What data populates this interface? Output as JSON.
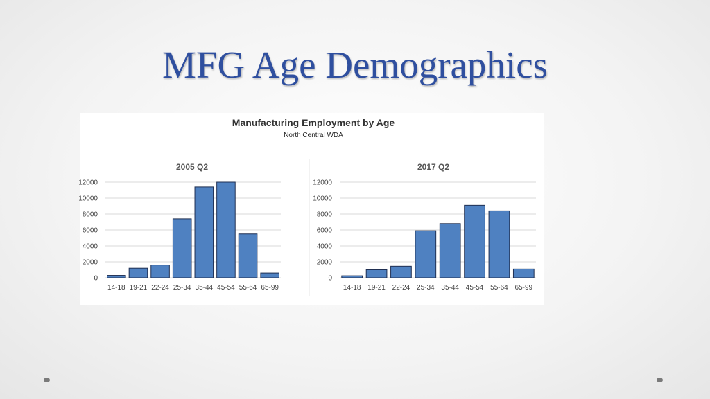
{
  "slide": {
    "title": "MFG Age Demographics"
  },
  "chart_header": {
    "title": "Manufacturing Employment by Age",
    "subtitle": "North Central WDA"
  },
  "colors": {
    "bar": "#4f81c1",
    "title": "#2f4f9f"
  },
  "chart_data": [
    {
      "type": "bar",
      "title": "2005 Q2",
      "categories": [
        "14-18",
        "19-21",
        "22-24",
        "25-34",
        "35-44",
        "45-54",
        "55-64",
        "65-99"
      ],
      "values": [
        300,
        1200,
        1600,
        7400,
        11400,
        12000,
        5500,
        600
      ],
      "y_ticks": [
        "0",
        "2000",
        "4000",
        "6000",
        "8000",
        "10000",
        "12000"
      ],
      "ylim": [
        0,
        12000
      ],
      "grid": true
    },
    {
      "type": "bar",
      "title": "2017 Q2",
      "categories": [
        "14-18",
        "19-21",
        "22-24",
        "25-34",
        "35-44",
        "45-54",
        "55-64",
        "65-99"
      ],
      "values": [
        250,
        1000,
        1450,
        5900,
        6800,
        9100,
        8400,
        1100
      ],
      "y_ticks": [
        "0",
        "2000",
        "4000",
        "6000",
        "8000",
        "10000",
        "12000"
      ],
      "ylim": [
        0,
        12000
      ],
      "grid": true
    }
  ]
}
